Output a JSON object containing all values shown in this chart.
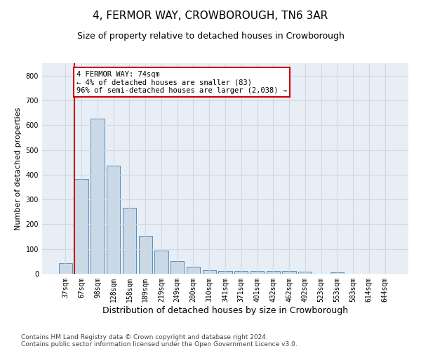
{
  "title": "4, FERMOR WAY, CROWBOROUGH, TN6 3AR",
  "subtitle": "Size of property relative to detached houses in Crowborough",
  "xlabel": "Distribution of detached houses by size in Crowborough",
  "ylabel": "Number of detached properties",
  "categories": [
    "37sqm",
    "67sqm",
    "98sqm",
    "128sqm",
    "158sqm",
    "189sqm",
    "219sqm",
    "249sqm",
    "280sqm",
    "310sqm",
    "341sqm",
    "371sqm",
    "401sqm",
    "432sqm",
    "462sqm",
    "492sqm",
    "523sqm",
    "553sqm",
    "583sqm",
    "614sqm",
    "644sqm"
  ],
  "values": [
    42,
    383,
    625,
    437,
    265,
    152,
    93,
    51,
    27,
    14,
    11,
    10,
    10,
    10,
    10,
    8,
    0,
    6,
    0,
    0,
    0
  ],
  "bar_color": "#c9d9e8",
  "bar_edge_color": "#5b8db8",
  "marker_label": "4 FERMOR WAY: 74sqm\n← 4% of detached houses are smaller (83)\n96% of semi-detached houses are larger (2,038) →",
  "annotation_box_color": "#ffffff",
  "annotation_box_edge_color": "#cc0000",
  "vline_color": "#cc0000",
  "vline_x_index": 1,
  "ylim": [
    0,
    850
  ],
  "yticks": [
    0,
    100,
    200,
    300,
    400,
    500,
    600,
    700,
    800
  ],
  "grid_color": "#d0d8e0",
  "bg_color": "#e8eef5",
  "footer": "Contains HM Land Registry data © Crown copyright and database right 2024.\nContains public sector information licensed under the Open Government Licence v3.0.",
  "title_fontsize": 11,
  "subtitle_fontsize": 9,
  "xlabel_fontsize": 9,
  "ylabel_fontsize": 8,
  "tick_fontsize": 7,
  "footer_fontsize": 6.5,
  "annotation_fontsize": 7.5
}
